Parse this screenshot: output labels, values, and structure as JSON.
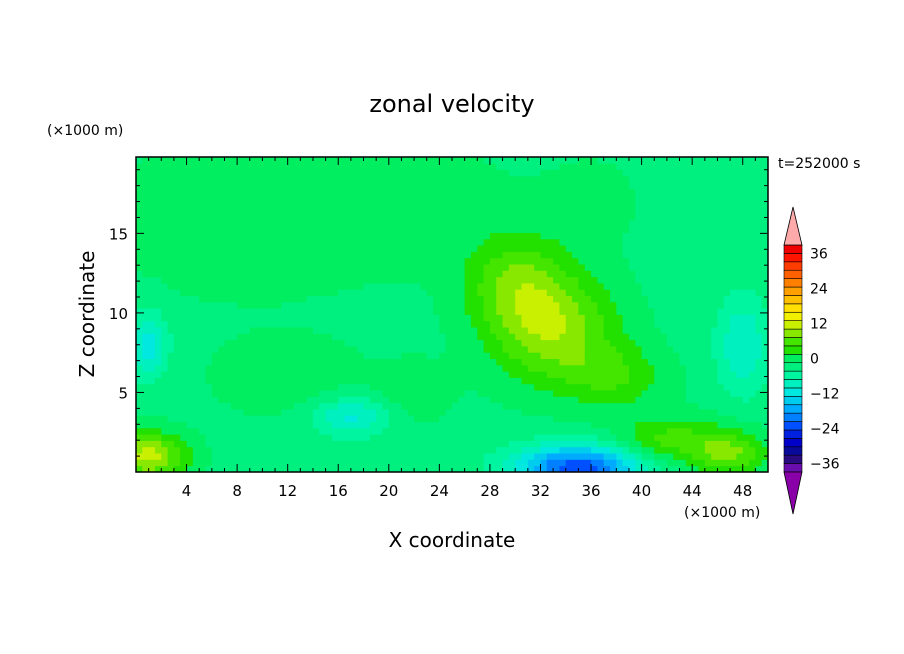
{
  "chart_data": {
    "type": "heatmap",
    "title": "zonal velocity",
    "xlabel": "X coordinate",
    "ylabel": "Z coordinate",
    "x_unit": "(×1000 m)",
    "y_unit": "(×1000 m)",
    "time_label": "t=252000 s",
    "xlim": [
      0,
      50
    ],
    "ylim": [
      0,
      19.8
    ],
    "x_ticks": [
      4,
      8,
      12,
      16,
      20,
      24,
      28,
      32,
      36,
      40,
      44,
      48
    ],
    "y_ticks": [
      5,
      10,
      15
    ],
    "colorbar": {
      "levels": [
        -42,
        -39,
        -36,
        -33,
        -30,
        -27,
        -24,
        -21,
        -18,
        -15,
        -12,
        -9,
        -6,
        -3,
        0,
        3,
        6,
        9,
        12,
        15,
        18,
        21,
        24,
        27,
        30,
        33,
        36,
        39,
        42
      ],
      "tick_labels": [
        36,
        24,
        12,
        0,
        -12,
        -24,
        -36
      ],
      "colors": [
        "#6a0dad",
        "#2a0a80",
        "#0a0a9a",
        "#0000c8",
        "#0022e0",
        "#0050ff",
        "#0080ff",
        "#00aaff",
        "#00ccee",
        "#00e8e0",
        "#00f0c0",
        "#00f5a0",
        "#00f080",
        "#00ee60",
        "#22e000",
        "#44e600",
        "#88e800",
        "#c8f000",
        "#f0f000",
        "#ffe000",
        "#ffc000",
        "#ffa000",
        "#ff8000",
        "#ff6000",
        "#ff3c00",
        "#ff1400",
        "#f00000",
        "#ffaaaa"
      ],
      "under_color": "#8a00a8",
      "over_color": "#ffaaaa"
    },
    "field": {
      "background_value": -4,
      "features": [
        {
          "x": 8,
          "z": 16,
          "sx": 10,
          "sz": 5,
          "value": 3
        },
        {
          "x": 20,
          "z": 17,
          "sx": 9,
          "sz": 4,
          "value": 3
        },
        {
          "x": 36,
          "z": 17,
          "sx": 4,
          "sz": 3,
          "value": 2
        },
        {
          "x": 33,
          "z": 9,
          "sx": 5,
          "sz": 3.5,
          "value": 12
        },
        {
          "x": 30,
          "z": 12,
          "sx": 4,
          "sz": 3,
          "value": 8
        },
        {
          "x": 38,
          "z": 6,
          "sx": 4,
          "sz": 2,
          "value": 6
        },
        {
          "x": 42,
          "z": 2,
          "sx": 4,
          "sz": 1.5,
          "value": 8
        },
        {
          "x": 1,
          "z": 1,
          "sx": 3,
          "sz": 1.5,
          "value": 14
        },
        {
          "x": 47,
          "z": 1.2,
          "sx": 3,
          "sz": 1.5,
          "value": 10
        },
        {
          "x": 35,
          "z": 0.3,
          "sx": 5,
          "sz": 1.4,
          "value": -22
        },
        {
          "x": 1,
          "z": 8,
          "sx": 1.5,
          "sz": 2,
          "value": -10
        },
        {
          "x": 17,
          "z": 3.5,
          "sx": 3,
          "sz": 1.2,
          "value": -9
        },
        {
          "x": 12,
          "z": 6,
          "sx": 6,
          "sz": 2.5,
          "value": 3
        },
        {
          "x": 22,
          "z": 5,
          "sx": 3,
          "sz": 2,
          "value": 3
        },
        {
          "x": 48,
          "z": 8,
          "sx": 2,
          "sz": 3,
          "value": -8
        }
      ]
    }
  }
}
